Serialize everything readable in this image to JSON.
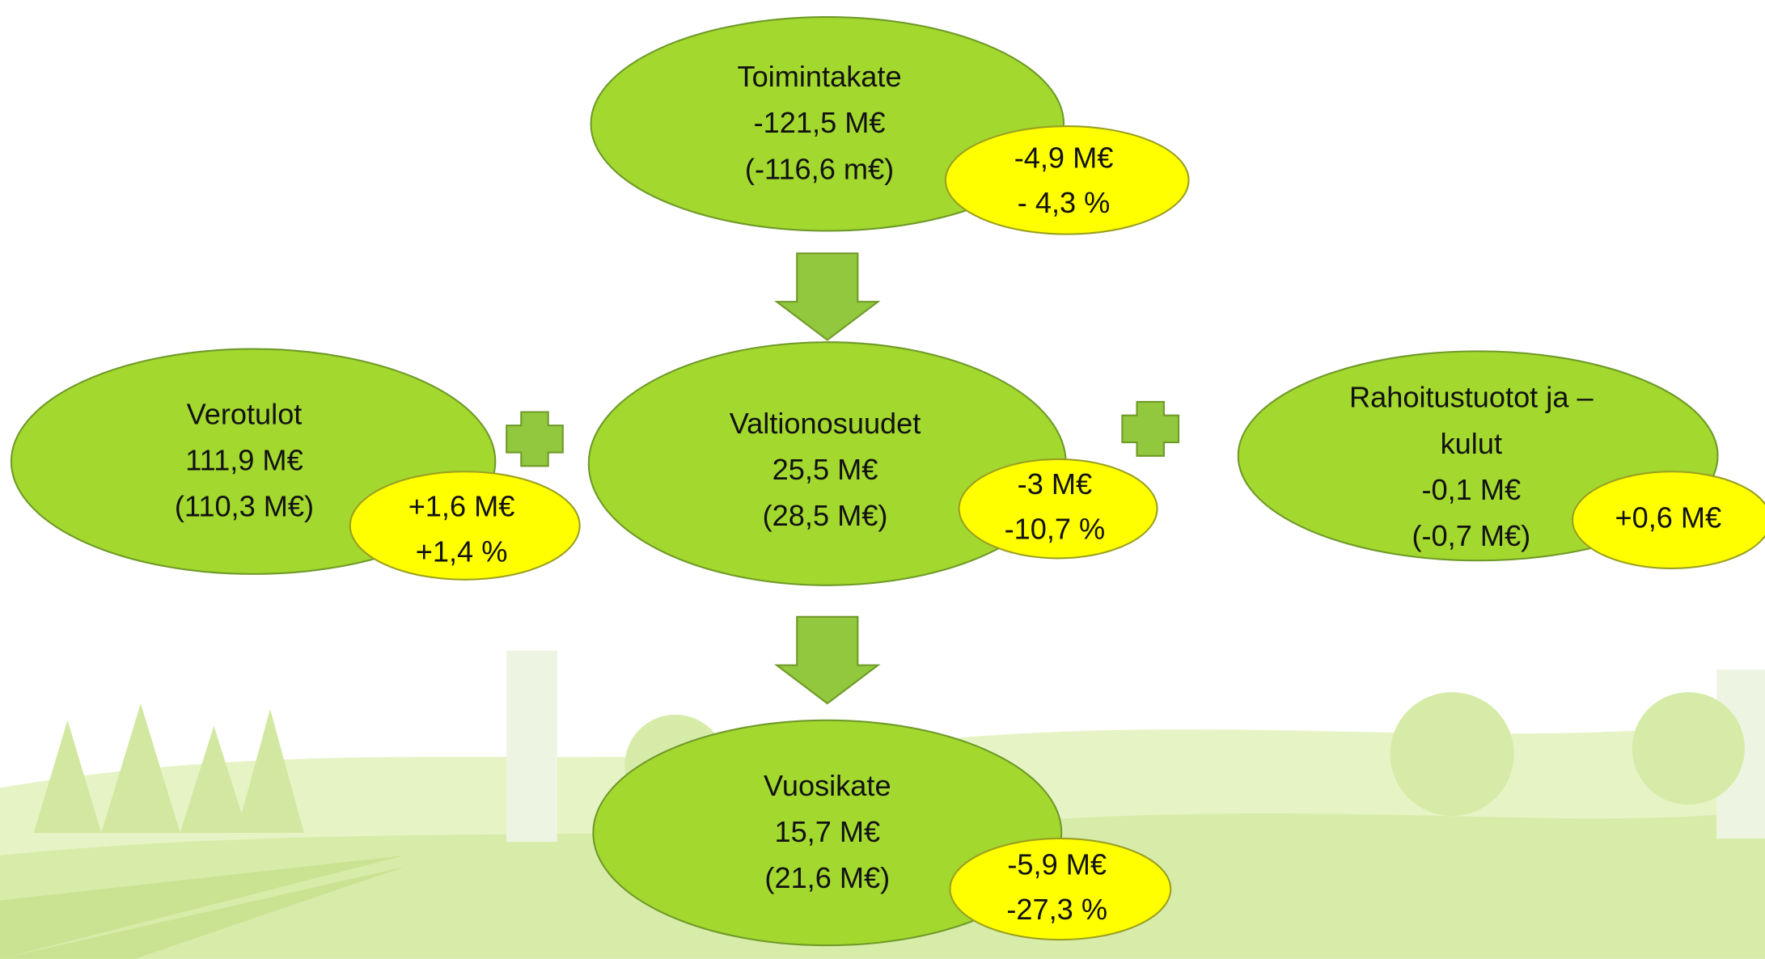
{
  "nodes": [
    {
      "lines": [
        "Toimintakate",
        "-121,5 M€",
        "(-116,6 m€)"
      ],
      "change": [
        "-4,9 M€",
        "- 4,3 %"
      ]
    },
    {
      "lines": [
        "Verotulot",
        "111,9 M€",
        "(110,3 M€)"
      ],
      "change": [
        "+1,6 M€",
        "+1,4 %"
      ]
    },
    {
      "lines": [
        "Valtionosuudet",
        "25,5 M€",
        "(28,5 M€)"
      ],
      "change": [
        "-3 M€",
        "-10,7 %"
      ]
    },
    {
      "lines": [
        "Rahoitustuotot ja –",
        "kulut",
        "-0,1 M€",
        "(-0,7 M€)"
      ],
      "change": [
        "+0,6 M€"
      ]
    },
    {
      "lines": [
        "Vuosikate",
        "15,7 M€",
        "(21,6 M€)"
      ],
      "change": [
        "-5,9 M€",
        "-27,3 %"
      ]
    }
  ]
}
